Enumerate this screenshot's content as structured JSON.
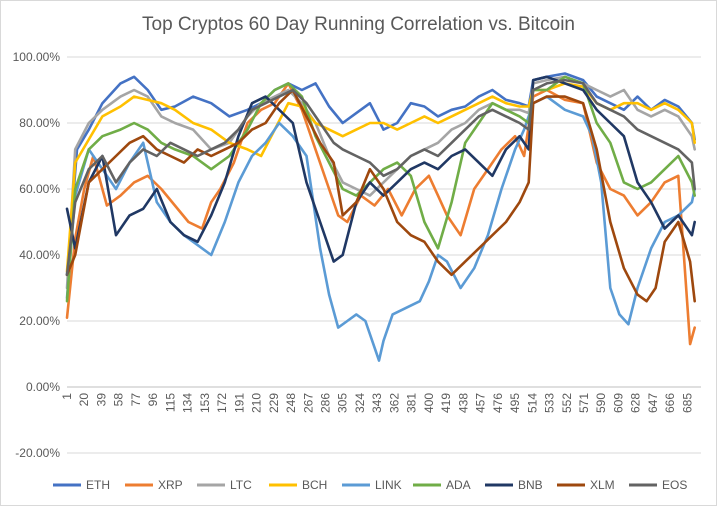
{
  "chart_data": {
    "type": "line",
    "title": "Top Cryptos 60 Day Running Correlation vs. Bitcoin",
    "xlabel": "",
    "ylabel": "",
    "xlim": [
      1,
      700
    ],
    "ylim": [
      -0.2,
      1.0
    ],
    "y_ticks": [
      "-20.00%",
      "0.00%",
      "20.00%",
      "40.00%",
      "60.00%",
      "80.00%",
      "100.00%"
    ],
    "x_ticks": [
      "1",
      "20",
      "39",
      "58",
      "77",
      "96",
      "115",
      "134",
      "153",
      "172",
      "191",
      "210",
      "229",
      "248",
      "267",
      "286",
      "305",
      "324",
      "343",
      "362",
      "381",
      "400",
      "419",
      "438",
      "457",
      "476",
      "495",
      "514",
      "533",
      "552",
      "571",
      "590",
      "609",
      "628",
      "647",
      "666",
      "685"
    ],
    "grid": true,
    "legend_position": "bottom",
    "series": [
      {
        "name": "ETH",
        "color": "#4472C4",
        "x": [
          1,
          12,
          25,
          40,
          60,
          75,
          90,
          105,
          120,
          140,
          160,
          180,
          200,
          215,
          230,
          245,
          260,
          275,
          290,
          305,
          320,
          335,
          350,
          365,
          380,
          395,
          410,
          425,
          440,
          455,
          470,
          485,
          500,
          510,
          515,
          530,
          550,
          570,
          585,
          600,
          615,
          630,
          645,
          660,
          675,
          690,
          693
        ],
        "y": [
          0.34,
          0.72,
          0.78,
          0.86,
          0.92,
          0.94,
          0.9,
          0.84,
          0.85,
          0.88,
          0.86,
          0.82,
          0.84,
          0.86,
          0.9,
          0.92,
          0.9,
          0.92,
          0.85,
          0.8,
          0.83,
          0.86,
          0.78,
          0.8,
          0.86,
          0.85,
          0.82,
          0.84,
          0.85,
          0.88,
          0.9,
          0.87,
          0.86,
          0.85,
          0.93,
          0.94,
          0.95,
          0.93,
          0.88,
          0.86,
          0.84,
          0.88,
          0.84,
          0.87,
          0.85,
          0.8,
          0.75
        ]
      },
      {
        "name": "XRP",
        "color": "#ED7D31",
        "x": [
          1,
          10,
          20,
          30,
          45,
          60,
          75,
          90,
          105,
          120,
          135,
          150,
          160,
          170,
          185,
          200,
          215,
          230,
          245,
          260,
          275,
          290,
          300,
          310,
          325,
          340,
          355,
          370,
          385,
          400,
          410,
          420,
          435,
          450,
          465,
          480,
          495,
          505,
          515,
          530,
          550,
          570,
          585,
          600,
          615,
          630,
          645,
          660,
          675,
          688,
          693
        ],
        "y": [
          0.21,
          0.45,
          0.6,
          0.7,
          0.55,
          0.58,
          0.62,
          0.64,
          0.6,
          0.55,
          0.5,
          0.48,
          0.56,
          0.6,
          0.68,
          0.8,
          0.84,
          0.86,
          0.92,
          0.84,
          0.72,
          0.6,
          0.52,
          0.5,
          0.58,
          0.55,
          0.6,
          0.52,
          0.6,
          0.64,
          0.58,
          0.52,
          0.46,
          0.6,
          0.66,
          0.72,
          0.76,
          0.7,
          0.88,
          0.9,
          0.87,
          0.86,
          0.68,
          0.6,
          0.58,
          0.52,
          0.56,
          0.62,
          0.64,
          0.13,
          0.18
        ]
      },
      {
        "name": "LTC",
        "color": "#A5A5A5",
        "x": [
          1,
          10,
          25,
          40,
          60,
          75,
          90,
          105,
          120,
          140,
          160,
          180,
          200,
          215,
          230,
          245,
          260,
          275,
          290,
          305,
          320,
          335,
          350,
          365,
          380,
          395,
          410,
          425,
          440,
          455,
          470,
          485,
          500,
          510,
          515,
          530,
          550,
          570,
          585,
          600,
          615,
          630,
          645,
          660,
          675,
          690,
          693
        ],
        "y": [
          0.3,
          0.72,
          0.8,
          0.84,
          0.88,
          0.9,
          0.88,
          0.82,
          0.8,
          0.78,
          0.72,
          0.74,
          0.82,
          0.86,
          0.88,
          0.9,
          0.86,
          0.8,
          0.7,
          0.62,
          0.6,
          0.58,
          0.62,
          0.66,
          0.7,
          0.72,
          0.74,
          0.78,
          0.8,
          0.84,
          0.86,
          0.84,
          0.84,
          0.83,
          0.92,
          0.93,
          0.94,
          0.92,
          0.9,
          0.88,
          0.9,
          0.84,
          0.82,
          0.84,
          0.82,
          0.76,
          0.72
        ]
      },
      {
        "name": "BCH",
        "color": "#FFC000",
        "x": [
          1,
          10,
          25,
          40,
          60,
          75,
          90,
          105,
          120,
          140,
          160,
          180,
          200,
          215,
          230,
          245,
          260,
          275,
          290,
          305,
          320,
          335,
          350,
          365,
          380,
          395,
          410,
          425,
          440,
          455,
          470,
          485,
          500,
          510,
          515,
          530,
          550,
          570,
          585,
          600,
          615,
          630,
          645,
          660,
          675,
          690,
          693
        ],
        "y": [
          0.35,
          0.68,
          0.75,
          0.82,
          0.85,
          0.88,
          0.87,
          0.86,
          0.84,
          0.8,
          0.78,
          0.74,
          0.72,
          0.7,
          0.78,
          0.86,
          0.85,
          0.8,
          0.78,
          0.76,
          0.78,
          0.8,
          0.8,
          0.78,
          0.8,
          0.82,
          0.8,
          0.82,
          0.84,
          0.86,
          0.88,
          0.86,
          0.85,
          0.85,
          0.9,
          0.9,
          0.92,
          0.91,
          0.86,
          0.84,
          0.86,
          0.86,
          0.84,
          0.86,
          0.84,
          0.8,
          0.74
        ]
      },
      {
        "name": "LINK",
        "color": "#5B9BD5",
        "x": [
          1,
          10,
          25,
          40,
          55,
          70,
          85,
          100,
          115,
          130,
          145,
          160,
          175,
          190,
          205,
          220,
          235,
          250,
          265,
          280,
          290,
          300,
          310,
          320,
          330,
          340,
          345,
          350,
          360,
          375,
          390,
          400,
          410,
          420,
          435,
          450,
          465,
          480,
          495,
          505,
          515,
          530,
          550,
          570,
          580,
          590,
          600,
          610,
          620,
          630,
          645,
          660,
          675,
          690,
          693
        ],
        "y": [
          0.27,
          0.58,
          0.72,
          0.66,
          0.6,
          0.68,
          0.74,
          0.56,
          0.5,
          0.46,
          0.43,
          0.4,
          0.5,
          0.62,
          0.7,
          0.74,
          0.8,
          0.76,
          0.7,
          0.42,
          0.28,
          0.18,
          0.2,
          0.22,
          0.2,
          0.12,
          0.08,
          0.14,
          0.22,
          0.24,
          0.26,
          0.32,
          0.4,
          0.38,
          0.3,
          0.36,
          0.46,
          0.6,
          0.72,
          0.78,
          0.86,
          0.88,
          0.84,
          0.82,
          0.76,
          0.62,
          0.3,
          0.22,
          0.19,
          0.3,
          0.42,
          0.5,
          0.52,
          0.56,
          0.6
        ]
      },
      {
        "name": "ADA",
        "color": "#70AD47",
        "x": [
          1,
          10,
          25,
          40,
          60,
          75,
          90,
          105,
          120,
          140,
          160,
          180,
          200,
          215,
          230,
          245,
          260,
          275,
          290,
          305,
          320,
          335,
          350,
          365,
          380,
          395,
          410,
          425,
          440,
          455,
          470,
          485,
          500,
          510,
          515,
          530,
          550,
          570,
          585,
          600,
          615,
          630,
          645,
          660,
          675,
          690,
          693
        ],
        "y": [
          0.26,
          0.6,
          0.72,
          0.76,
          0.78,
          0.8,
          0.78,
          0.74,
          0.72,
          0.7,
          0.66,
          0.7,
          0.78,
          0.86,
          0.9,
          0.92,
          0.88,
          0.76,
          0.68,
          0.6,
          0.58,
          0.62,
          0.66,
          0.68,
          0.64,
          0.5,
          0.42,
          0.56,
          0.74,
          0.8,
          0.86,
          0.84,
          0.82,
          0.8,
          0.9,
          0.9,
          0.94,
          0.92,
          0.8,
          0.74,
          0.62,
          0.6,
          0.62,
          0.66,
          0.7,
          0.62,
          0.58
        ]
      },
      {
        "name": "BNB",
        "color": "#203864",
        "x": [
          1,
          10,
          25,
          40,
          55,
          70,
          85,
          100,
          115,
          130,
          145,
          160,
          175,
          190,
          205,
          220,
          235,
          250,
          265,
          280,
          295,
          305,
          320,
          335,
          350,
          365,
          380,
          395,
          410,
          425,
          440,
          455,
          470,
          485,
          500,
          510,
          515,
          530,
          550,
          570,
          585,
          600,
          615,
          630,
          645,
          660,
          675,
          690,
          693
        ],
        "y": [
          0.54,
          0.42,
          0.62,
          0.7,
          0.46,
          0.52,
          0.54,
          0.6,
          0.5,
          0.46,
          0.44,
          0.52,
          0.62,
          0.76,
          0.86,
          0.88,
          0.84,
          0.8,
          0.62,
          0.5,
          0.38,
          0.4,
          0.56,
          0.62,
          0.58,
          0.62,
          0.66,
          0.68,
          0.66,
          0.7,
          0.72,
          0.68,
          0.64,
          0.72,
          0.76,
          0.72,
          0.93,
          0.94,
          0.92,
          0.9,
          0.84,
          0.8,
          0.76,
          0.62,
          0.56,
          0.48,
          0.52,
          0.46,
          0.5
        ]
      },
      {
        "name": "XLM",
        "color": "#9E480E",
        "x": [
          1,
          10,
          25,
          40,
          55,
          70,
          85,
          100,
          115,
          130,
          145,
          160,
          175,
          190,
          205,
          220,
          235,
          250,
          265,
          280,
          295,
          305,
          320,
          335,
          350,
          365,
          380,
          395,
          410,
          425,
          440,
          455,
          470,
          485,
          500,
          510,
          515,
          530,
          550,
          570,
          585,
          600,
          615,
          630,
          640,
          650,
          660,
          675,
          688,
          693
        ],
        "y": [
          0.34,
          0.4,
          0.62,
          0.66,
          0.7,
          0.74,
          0.76,
          0.72,
          0.7,
          0.68,
          0.72,
          0.7,
          0.72,
          0.74,
          0.78,
          0.8,
          0.86,
          0.9,
          0.82,
          0.74,
          0.68,
          0.52,
          0.56,
          0.66,
          0.6,
          0.5,
          0.46,
          0.44,
          0.38,
          0.34,
          0.38,
          0.42,
          0.46,
          0.5,
          0.56,
          0.62,
          0.86,
          0.88,
          0.88,
          0.86,
          0.72,
          0.5,
          0.36,
          0.28,
          0.26,
          0.3,
          0.44,
          0.5,
          0.38,
          0.26
        ]
      },
      {
        "name": "EOS",
        "color": "#636363",
        "x": [
          1,
          10,
          25,
          40,
          55,
          70,
          85,
          100,
          115,
          130,
          145,
          160,
          175,
          190,
          205,
          220,
          235,
          250,
          265,
          280,
          295,
          305,
          320,
          335,
          350,
          365,
          380,
          395,
          410,
          425,
          440,
          455,
          470,
          485,
          500,
          510,
          515,
          530,
          550,
          570,
          585,
          600,
          615,
          630,
          645,
          660,
          675,
          690,
          693
        ],
        "y": [
          0.34,
          0.56,
          0.66,
          0.7,
          0.62,
          0.68,
          0.72,
          0.7,
          0.74,
          0.72,
          0.7,
          0.72,
          0.74,
          0.78,
          0.84,
          0.86,
          0.88,
          0.9,
          0.86,
          0.8,
          0.74,
          0.72,
          0.7,
          0.68,
          0.64,
          0.66,
          0.7,
          0.72,
          0.7,
          0.74,
          0.78,
          0.82,
          0.84,
          0.82,
          0.8,
          0.78,
          0.9,
          0.92,
          0.93,
          0.92,
          0.86,
          0.84,
          0.82,
          0.78,
          0.76,
          0.74,
          0.72,
          0.68,
          0.6
        ]
      }
    ]
  }
}
